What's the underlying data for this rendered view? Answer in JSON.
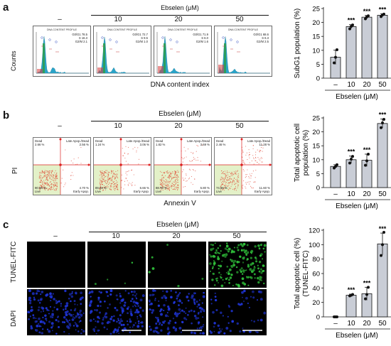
{
  "panels": {
    "a": {
      "label": "a",
      "treatment_header": "Ebselen (μM)",
      "columns": [
        "–",
        "10",
        "20",
        "50"
      ],
      "x_axis_label": "DNA content index",
      "y_axis_label": "Counts",
      "histogram_title": "DNA CONTENT PROFILE",
      "histogram_stats": [
        [
          "G0/G1 78.5",
          "S 16.3",
          "G2/M 2.1"
        ],
        [
          "G0/G1 72.7",
          "S 9.5",
          "G2/M 1.0"
        ],
        [
          "G0/G1 71.9",
          "S 6.0",
          "G2/M 1.6"
        ],
        [
          "G0/G1 68.6",
          "S 6.3",
          "G2/M 2.5"
        ]
      ]
    },
    "b": {
      "label": "b",
      "treatment_header": "Ebselen (μM)",
      "columns": [
        "–",
        "10",
        "20",
        "50"
      ],
      "x_axis_label": "Annexin V",
      "y_axis_label": "PI",
      "quadrant_names": {
        "ul": "Dead",
        "ur": "Late Apop./Dead",
        "ll": "Live",
        "lr": "Early Apop."
      },
      "quadrant_values": [
        {
          "ul": "2.66 %",
          "ur": "2.56 %",
          "ll": "90.06 %",
          "lr": "4.70 %"
        },
        {
          "ul": "1.24 %",
          "ur": "3.06 %",
          "ll": "89.04 %",
          "lr": "6.66 %"
        },
        {
          "ul": "1.82 %",
          "ur": "3.69 %",
          "ll": "88.70 %",
          "lr": "5.80 %"
        },
        {
          "ul": "2.46 %",
          "ur": "11.28 %",
          "ll": "74.66 %",
          "lr": "11.60 %"
        }
      ]
    },
    "c": {
      "label": "c",
      "treatment_header": "Ebselen (μM)",
      "columns": [
        "–",
        "10",
        "20",
        "50"
      ],
      "row_labels": [
        "TUNEL-FITC",
        "DAPI"
      ],
      "colors": {
        "tunel": "#2fbf3a",
        "dapi": "#1f35d8",
        "background": "#000000"
      }
    }
  },
  "chart_data": [
    {
      "type": "bar",
      "panel": "a",
      "categories": [
        "–",
        "10",
        "20",
        "50"
      ],
      "values": [
        7.5,
        18.5,
        21.9,
        22.6
      ],
      "errors": [
        2.6,
        0.7,
        0.6,
        0.5
      ],
      "points": [
        [
          5.5,
          7.5,
          10.2
        ],
        [
          17.7,
          18.6,
          19.1
        ],
        [
          21.3,
          22.0,
          22.4
        ],
        [
          22.1,
          22.7,
          23.0
        ]
      ],
      "significance": [
        "",
        "***",
        "***",
        "***"
      ],
      "xlabel": "Ebselen (μM)",
      "ylabel": "SubG1 population (%)",
      "ylim": [
        0,
        25
      ],
      "yticks": [
        0,
        5,
        10,
        15,
        20,
        25
      ]
    },
    {
      "type": "bar",
      "panel": "b",
      "categories": [
        "–",
        "10",
        "20",
        "50"
      ],
      "values": [
        7.6,
        10.0,
        9.8,
        23.0
      ],
      "errors": [
        0.6,
        1.3,
        2.2,
        1.6
      ],
      "points": [
        [
          7.0,
          7.6,
          8.2
        ],
        [
          8.8,
          10.2,
          11.2
        ],
        [
          8.0,
          9.6,
          12.0
        ],
        [
          21.5,
          23.2,
          24.5
        ]
      ],
      "significance": [
        "",
        "***",
        "***",
        "***"
      ],
      "xlabel": "Ebselen (μM)",
      "ylabel": "Total apoptotic cell population (%)",
      "ylim": [
        0,
        25
      ],
      "yticks": [
        0,
        5,
        10,
        15,
        20,
        25
      ]
    },
    {
      "type": "bar",
      "panel": "c",
      "categories": [
        "–",
        "10",
        "20",
        "50"
      ],
      "values": [
        0,
        30,
        32,
        101
      ],
      "errors": [
        0,
        1.5,
        9,
        15
      ],
      "points": [
        [
          0,
          0,
          0
        ],
        [
          29,
          30,
          31
        ],
        [
          25,
          31,
          41
        ],
        [
          85,
          100,
          117
        ]
      ],
      "significance": [
        "",
        "***",
        "***",
        "***"
      ],
      "xlabel": "Ebselen (μM)",
      "ylabel": "Total apoptotic cell (%) (TUNEL-FITC)",
      "ylim": [
        0,
        120
      ],
      "yticks": [
        0,
        20,
        40,
        60,
        80,
        100,
        120
      ]
    }
  ]
}
